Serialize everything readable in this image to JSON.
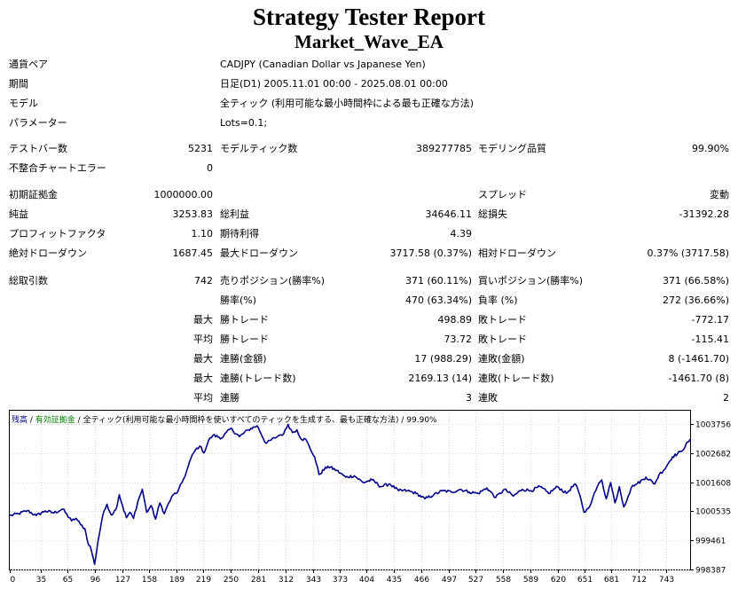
{
  "report": {
    "title": "Strategy Tester Report",
    "ea_name": "Market_Wave_EA"
  },
  "info": [
    {
      "label": "通貨ペア",
      "value": "CADJPY (Canadian Dollar vs Japanese Yen)"
    },
    {
      "label": "期間",
      "value": "日足(D1) 2005.11.01 00:00 - 2025.08.01 00:00"
    },
    {
      "label": "モデル",
      "value": "全ティック (利用可能な最小時間枠による最も正確な方法)"
    },
    {
      "label": "パラメーター",
      "value": "Lots=0.1;"
    }
  ],
  "stats": {
    "bars_label": "テストバー数",
    "bars": "5231",
    "ticks_label": "モデルティック数",
    "ticks": "389277785",
    "quality_label": "モデリング品質",
    "quality": "99.90%",
    "mismatch_label": "不整合チャートエラー",
    "mismatch": "0",
    "deposit_label": "初期証拠金",
    "deposit": "1000000.00",
    "spread_label": "スプレッド",
    "spread": "変動",
    "net_label": "純益",
    "net": "3253.83",
    "gross_profit_label": "総利益",
    "gross_profit": "34646.11",
    "gross_loss_label": "総損失",
    "gross_loss": "-31392.28",
    "pf_label": "プロフィットファクタ",
    "pf": "1.10",
    "expected_label": "期待利得",
    "expected": "4.39",
    "abs_dd_label": "絶対ドローダウン",
    "abs_dd": "1687.45",
    "max_dd_label": "最大ドローダウン",
    "max_dd": "3717.58 (0.37%)",
    "rel_dd_label": "相対ドローダウン",
    "rel_dd": "0.37% (3717.58)",
    "total_trades_label": "総取引数",
    "total_trades": "742",
    "short_label": "売りポジション(勝率%)",
    "short": "371 (60.11%)",
    "long_label": "買いポジション(勝率%)",
    "long": "371 (66.58%)",
    "win_pct_label": "勝率(%)",
    "win_pct": "470 (63.34%)",
    "loss_pct_label": "負率 (%)",
    "loss_pct": "272 (36.66%)",
    "max_label": "最大",
    "avg_label": "平均",
    "largest_win_label": "勝トレード",
    "largest_win": "498.89",
    "largest_loss_label": "敗トレード",
    "largest_loss": "-772.17",
    "avg_win_label": "勝トレード",
    "avg_win": "73.72",
    "avg_loss_label": "敗トレード",
    "avg_loss": "-115.41",
    "max_cons_wins_money_label": "連勝(金額)",
    "max_cons_wins_money": "17 (988.29)",
    "max_cons_losses_money_label": "連敗(金額)",
    "max_cons_losses_money": "8 (-1461.70)",
    "max_cons_wins_count_label": "連勝(トレード数)",
    "max_cons_wins_count": "2169.13 (14)",
    "max_cons_losses_count_label": "連敗(トレード数)",
    "max_cons_losses_count": "-1461.70 (8)",
    "avg_cons_wins_label": "連勝",
    "avg_cons_wins": "3",
    "avg_cons_losses_label": "連敗",
    "avg_cons_losses": "2"
  },
  "chart_header": {
    "balance": "残高",
    "sep1": " / ",
    "margin": "有効証拠金",
    "sep2": " / ",
    "model": "全ティック(利用可能な最小時間枠を使いすべてのティックを生成する、最も正確な方法)",
    "sep3": " / ",
    "quality": "99.90%"
  },
  "colors": {
    "balance_line": "#00008b",
    "header_balance": "#000080",
    "header_margin": "#008000"
  },
  "chart_data": {
    "type": "line",
    "x_ticks": [
      0,
      35,
      65,
      96,
      127,
      158,
      189,
      219,
      250,
      281,
      312,
      343,
      373,
      404,
      435,
      466,
      497,
      527,
      558,
      589,
      620,
      651,
      681,
      712,
      743
    ],
    "y_ticks": [
      998387,
      999461,
      1000535,
      1001608,
      1002682,
      1003756
    ],
    "xlim": [
      0,
      770
    ],
    "ylim": [
      998387,
      1004256
    ],
    "grid": true,
    "series": [
      {
        "x": [
          0,
          10,
          20,
          30,
          40,
          50,
          60,
          70,
          75,
          80,
          85,
          88,
          92,
          96,
          100,
          105,
          110,
          115,
          120,
          124,
          128,
          132,
          136,
          140,
          145,
          150,
          155,
          160,
          165,
          170,
          175,
          180,
          185,
          190,
          195,
          200,
          205,
          210,
          215,
          220,
          225,
          230,
          240,
          250,
          260,
          270,
          280,
          290,
          300,
          305,
          310,
          315,
          320,
          325,
          330,
          335,
          340,
          345,
          350,
          360,
          370,
          380,
          390,
          400,
          410,
          420,
          430,
          440,
          450,
          460,
          470,
          480,
          490,
          500,
          510,
          520,
          530,
          540,
          550,
          560,
          570,
          580,
          590,
          600,
          610,
          620,
          630,
          640,
          645,
          650,
          655,
          660,
          665,
          670,
          675,
          680,
          685,
          690,
          695,
          700,
          705,
          710,
          720,
          730,
          735,
          740,
          750,
          760,
          770
        ],
        "values": [
          1000380,
          1000450,
          1000560,
          1000380,
          1000550,
          1000480,
          1000620,
          1000180,
          1000280,
          1000050,
          999900,
          999420,
          999150,
          998580,
          999450,
          1000350,
          1000800,
          1000400,
          1000600,
          1001150,
          1000700,
          1000300,
          1000500,
          1000280,
          1000900,
          1001350,
          1000500,
          1000750,
          1000250,
          1000850,
          1000450,
          1000850,
          1001150,
          1001250,
          1001600,
          1002000,
          1002500,
          1002800,
          1002950,
          1002700,
          1003150,
          1003350,
          1003250,
          1003600,
          1003300,
          1003550,
          1003700,
          1003050,
          1003250,
          1003350,
          1003400,
          1003750,
          1003450,
          1003550,
          1003200,
          1003200,
          1002850,
          1002550,
          1001900,
          1002200,
          1002050,
          1001800,
          1001850,
          1001600,
          1001700,
          1001450,
          1001550,
          1001300,
          1001300,
          1001200,
          1001000,
          1001150,
          1001300,
          1001250,
          1001350,
          1001250,
          1001200,
          1001400,
          1001050,
          1001350,
          1001100,
          1001350,
          1001300,
          1001450,
          1001200,
          1001450,
          1001200,
          1001550,
          1001150,
          1000500,
          1000650,
          1001050,
          1001450,
          1001700,
          1001000,
          1001600,
          1000850,
          1001450,
          1000700,
          1001100,
          1001500,
          1001550,
          1001800,
          1001550,
          1001900,
          1002050,
          1002550,
          1002750,
          1003200
        ]
      }
    ]
  }
}
